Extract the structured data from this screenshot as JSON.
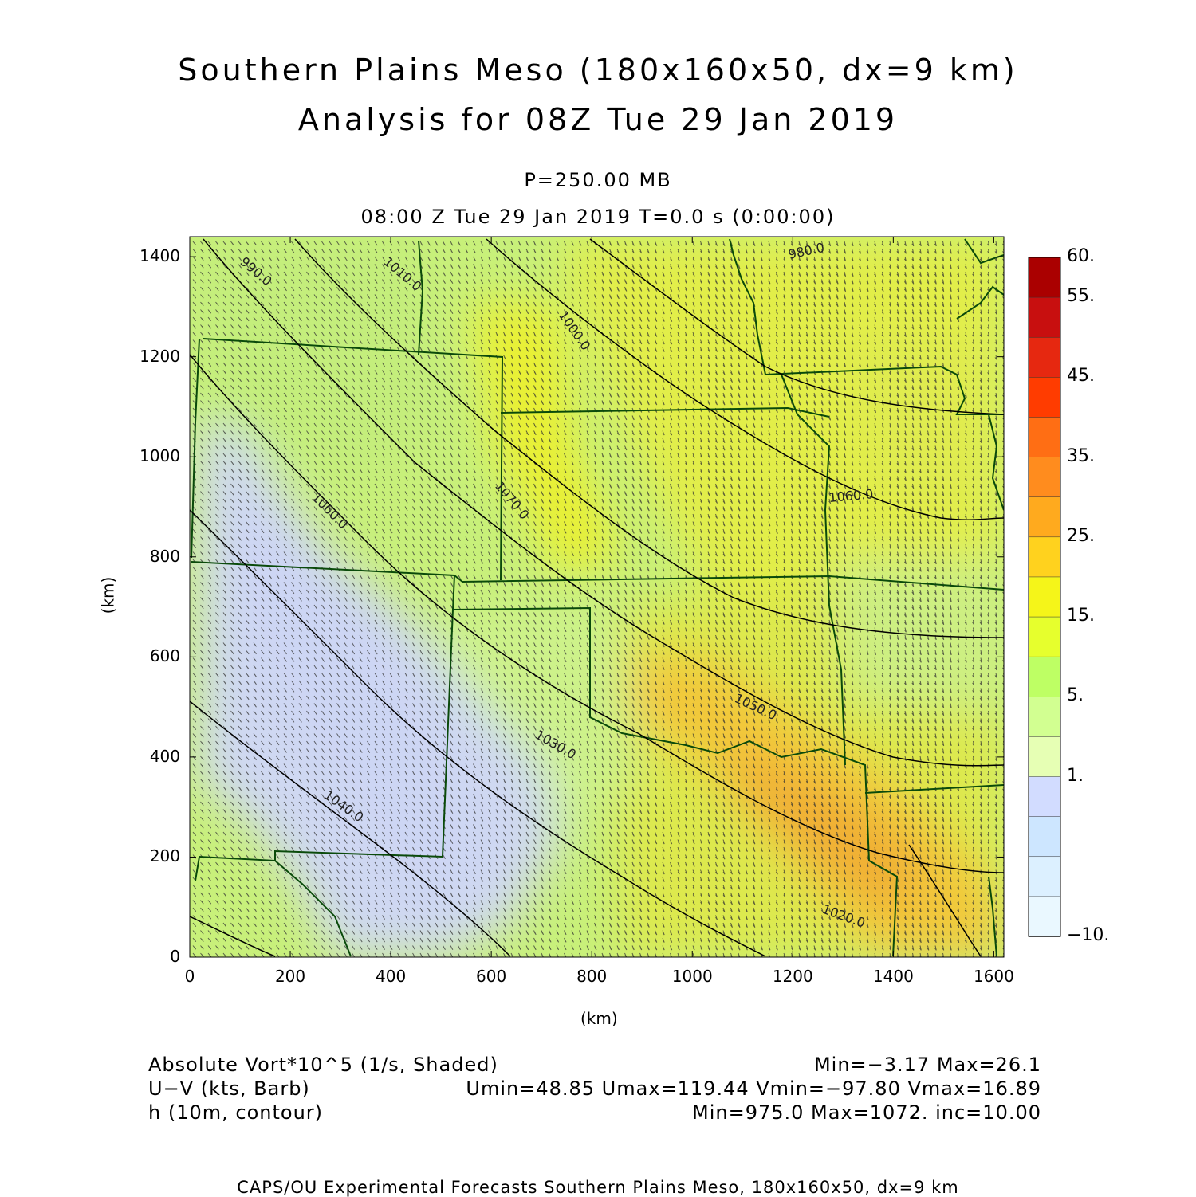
{
  "header": {
    "title_line1": "Southern Plains Meso (180x160x50, dx=9 km)",
    "title_line2": "Analysis for 08Z Tue 29 Jan 2019",
    "level": "P=250.00 MB",
    "valid_time": "08:00 Z Tue 29 Jan 2019    T=0.0 s (0:00:00)"
  },
  "axes": {
    "x_label": "(km)",
    "y_label": "(km)",
    "x_ticks": [
      "0",
      "200",
      "400",
      "600",
      "800",
      "1000",
      "1200",
      "1400",
      "1600"
    ],
    "y_ticks": [
      "0",
      "200",
      "400",
      "600",
      "800",
      "1000",
      "1200",
      "1400"
    ],
    "x_range": [
      0,
      1620
    ],
    "y_range": [
      0,
      1440
    ]
  },
  "colorbar": {
    "labels": [
      "60.",
      "55.",
      "45.",
      "35.",
      "25.",
      "15.",
      "5.",
      "1.",
      "−10."
    ],
    "colors": [
      "#aa0000",
      "#c80f0f",
      "#e62810",
      "#ff3c00",
      "#ff6e14",
      "#ff8c1e",
      "#ffaa1e",
      "#ffd21e",
      "#f5f519",
      "#e6ff2d",
      "#beff64",
      "#d2ff91",
      "#e6ffb4",
      "#d2dcff",
      "#cde6ff",
      "#dcf0ff",
      "#eaf8ff"
    ]
  },
  "contour_labels": [
    "980.0",
    "1000.0",
    "1060.0",
    "1070.0",
    "1060.0",
    "1050.0",
    "1030.0",
    "1040.0",
    "1020.0",
    "1010.0",
    "990.0"
  ],
  "footer": {
    "field1": "Absolute Vort*10^5 (1/s, Shaded)",
    "field1_stats": "Min=−3.17 Max=26.1",
    "field2": "U−V (kts, Barb)",
    "field2_stats": "Umin=48.85 Umax=119.44 Vmin=−97.80 Vmax=16.89",
    "field3": "h (10m, contour)",
    "field3_stats": "Min=975.0 Max=1072. inc=10.00",
    "credit": "CAPS/OU Experimental Forecasts  Southern Plains Meso, 180x160x50, dx=9 km"
  }
}
